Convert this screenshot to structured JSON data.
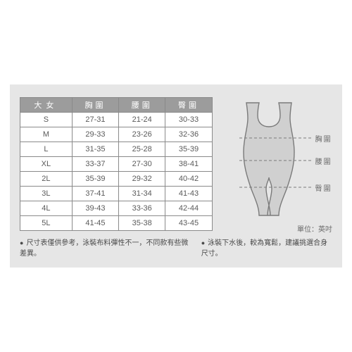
{
  "table": {
    "headers": [
      "大女",
      "胸圍",
      "腰圍",
      "臀圍"
    ],
    "rows": [
      [
        "S",
        "27-31",
        "21-24",
        "30-33"
      ],
      [
        "M",
        "29-33",
        "23-26",
        "32-36"
      ],
      [
        "L",
        "31-35",
        "25-28",
        "35-39"
      ],
      [
        "XL",
        "33-37",
        "27-30",
        "38-41"
      ],
      [
        "2L",
        "35-39",
        "29-32",
        "40-42"
      ],
      [
        "3L",
        "37-41",
        "31-34",
        "41-43"
      ],
      [
        "4L",
        "39-43",
        "33-36",
        "42-44"
      ],
      [
        "5L",
        "41-45",
        "35-38",
        "43-45"
      ]
    ]
  },
  "diagram": {
    "labels": {
      "bust": "胸圍",
      "waist": "腰圍",
      "hip": "臀圍"
    },
    "stroke": "#7a7a7a",
    "fill": "#d0d0d0",
    "dash": "#7a7a7a"
  },
  "unit": "單位：英吋",
  "notes": [
    "尺寸表僅供參考，泳裝布料彈性不一，不同款有些微差異。",
    "泳裝下水後，較為寬鬆，建議挑選合身尺寸。"
  ],
  "colors": {
    "cardBg": "#e6e6e6",
    "headerBg": "#9c9c9c",
    "border": "#8a8a8a",
    "text": "#5a5a5a"
  }
}
